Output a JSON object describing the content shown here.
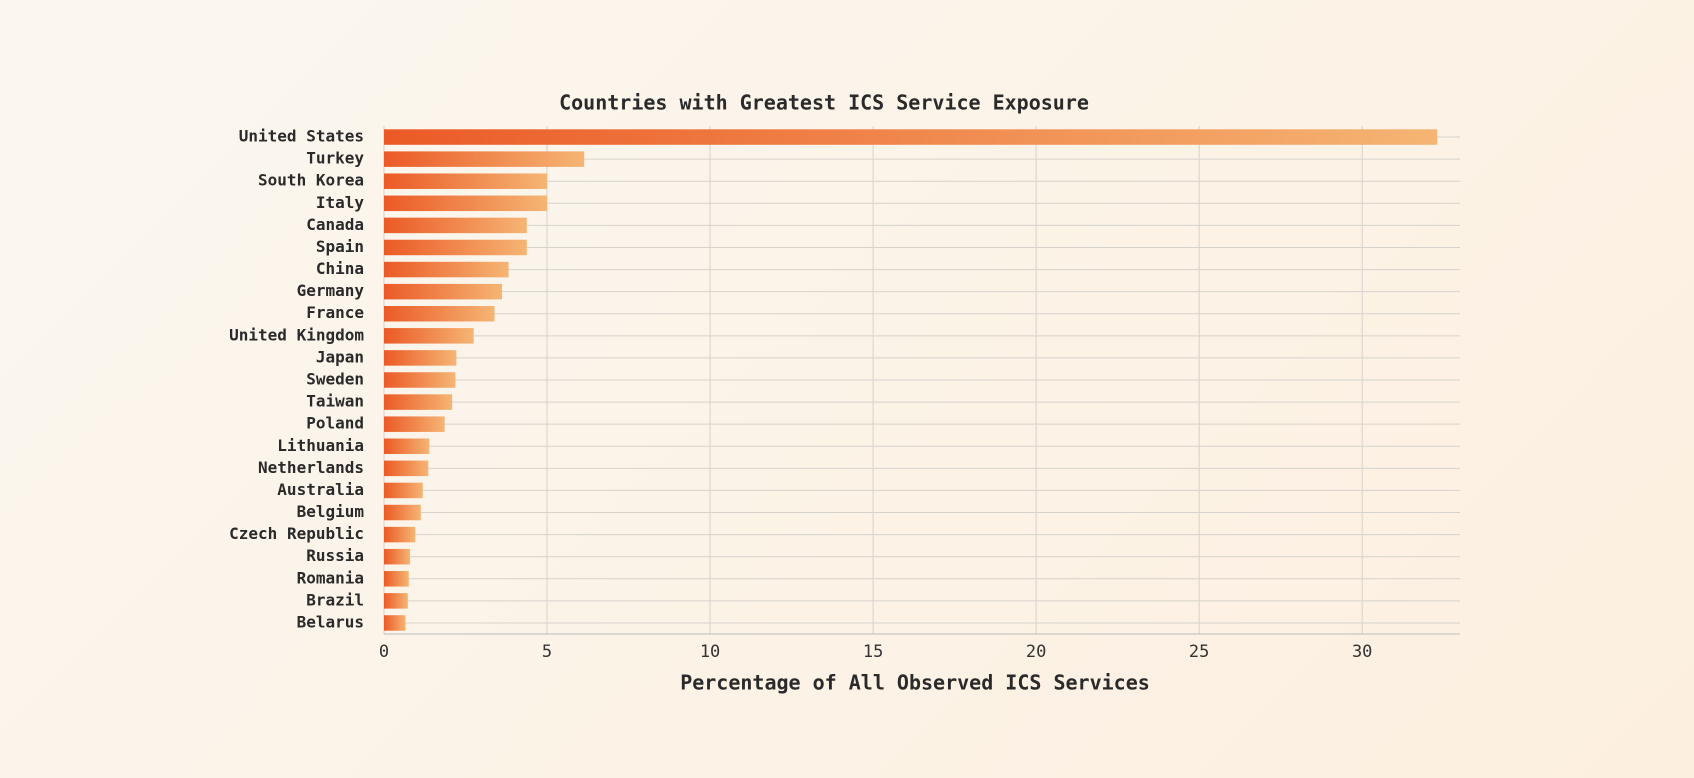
{
  "chart_data": {
    "type": "barh",
    "title": "Countries with Greatest ICS Service Exposure",
    "x_label": "Percentage of All Observed ICS Services",
    "categories": [
      "United States",
      "Turkey",
      "South Korea",
      "Italy",
      "Canada",
      "Spain",
      "China",
      "Germany",
      "France",
      "United Kingdom",
      "Japan",
      "Sweden",
      "Taiwan",
      "Poland",
      "Lithuania",
      "Netherlands",
      "Australia",
      "Belgium",
      "Czech Republic",
      "Russia",
      "Romania",
      "Brazil",
      "Belarus"
    ],
    "values": [
      32.3,
      6.14,
      5.0,
      5.0,
      4.38,
      4.38,
      3.82,
      3.62,
      3.39,
      2.75,
      2.22,
      2.19,
      2.09,
      1.86,
      1.39,
      1.36,
      1.19,
      1.13,
      0.96,
      0.8,
      0.76,
      0.73,
      0.66
    ],
    "gradient": [
      "#eb5a26",
      "#f5b574"
    ],
    "xlim": [
      0,
      33
    ],
    "xticks": [
      0,
      5,
      10,
      15,
      20,
      25,
      30
    ],
    "grid": true
  }
}
